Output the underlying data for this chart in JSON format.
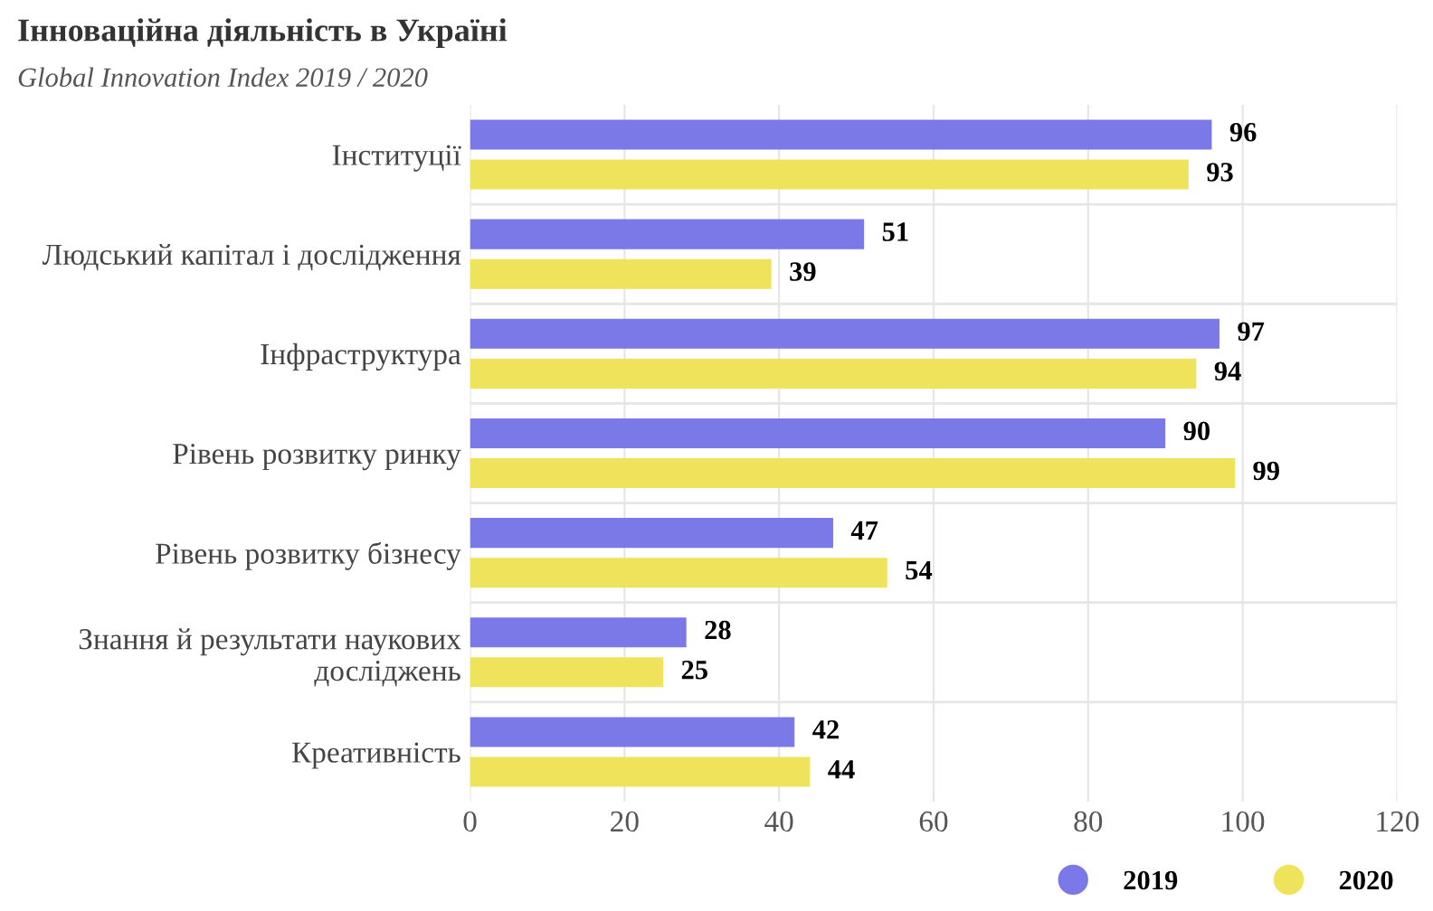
{
  "chart_data": {
    "type": "bar",
    "orientation": "horizontal",
    "title": "Інноваційна діяльність в Україні",
    "subtitle": "Global Innovation Index 2019 / 2020",
    "categories": [
      "Інституції",
      "Людський капітал і дослідження",
      "Інфраструктура",
      "Рівень розвитку ринку",
      "Рівень розвитку бізнесу",
      "Знання й результати наукових досліджень",
      "Креативність"
    ],
    "series": [
      {
        "name": "2019",
        "color": "#7b78e8",
        "values": [
          96,
          51,
          97,
          90,
          47,
          28,
          42
        ]
      },
      {
        "name": "2020",
        "color": "#f0e35c",
        "values": [
          93,
          39,
          94,
          99,
          54,
          25,
          44
        ]
      }
    ],
    "xlim": [
      0,
      120
    ],
    "xticks": [
      0,
      20,
      40,
      60,
      80,
      100,
      120
    ],
    "grid": true,
    "legend": "bottom right",
    "data_labels": true
  }
}
